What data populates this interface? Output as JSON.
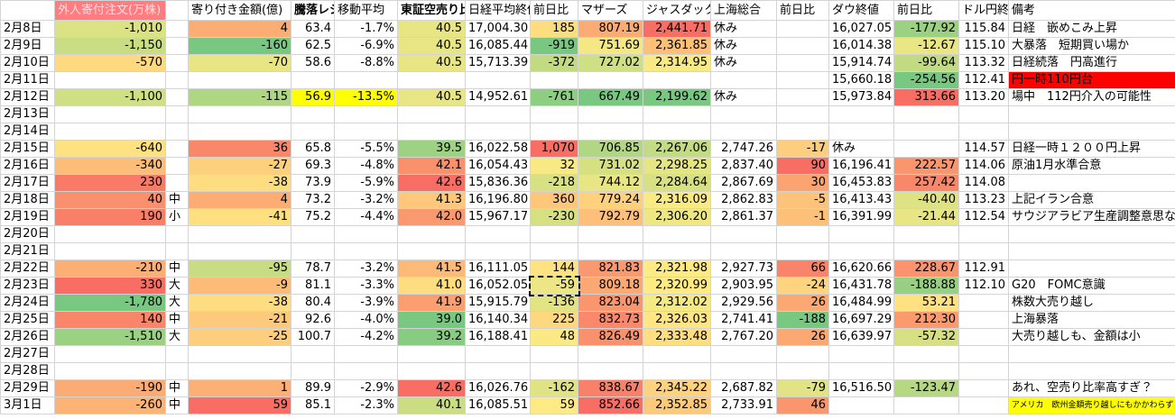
{
  "header": [
    "",
    "外人寄付注文(万株)",
    null,
    "寄り付き金額(億)",
    "騰落レシオ",
    "移動平均",
    "東証空売り比率",
    "日経平均終値",
    "前日比",
    "マザーズ",
    "ジャスダック",
    "上海総合",
    "前日比",
    "ダウ終値",
    "前日比",
    "ドル円終値",
    "備考"
  ],
  "rows": [
    [
      "2月8日",
      "-1,010",
      null,
      "4",
      "63.4",
      "-1.7%",
      "40.5",
      "17,004.30",
      "185",
      "807.19",
      "2,441.71",
      "休み",
      null,
      "16,027.05",
      "-177.92",
      "115.84",
      "日経　嵌めこみ上昇"
    ],
    [
      "2月9日",
      "-1,150",
      null,
      "-160",
      "62.5",
      "-6.9%",
      "40.5",
      "16,085.44",
      "-919",
      "751.69",
      "2,361.85",
      "休み",
      null,
      "16,014.38",
      "-12.67",
      "115.10",
      "大暴落　短期買い場か"
    ],
    [
      "2月10日",
      "-570",
      null,
      "-70",
      "58.6",
      "-8.8%",
      "40.5",
      "15,713.39",
      "-372",
      "727.02",
      "2,314.95",
      "休み",
      null,
      "15,914.74",
      "-99.64",
      "113.32",
      "日経続落　円高進行"
    ],
    [
      "2月11日",
      null,
      null,
      null,
      null,
      null,
      null,
      null,
      null,
      null,
      null,
      null,
      null,
      "15,660.18",
      "-254.56",
      "112.41",
      "円一時110円台"
    ],
    [
      "2月12日",
      "-1,100",
      null,
      "-115",
      "56.9",
      "-13.5%",
      "40.5",
      "14,952.61",
      "-761",
      "667.49",
      "2,199.62",
      "休み",
      null,
      "15,973.84",
      "313.66",
      "113.20",
      "場中　112円介入の可能性"
    ],
    [
      "2月13日",
      null,
      null,
      null,
      null,
      null,
      null,
      null,
      null,
      null,
      null,
      null,
      null,
      null,
      null,
      null,
      null
    ],
    [
      "2月14日",
      null,
      null,
      null,
      null,
      null,
      null,
      null,
      null,
      null,
      null,
      null,
      null,
      null,
      null,
      null,
      null
    ],
    [
      "2月15日",
      "-640",
      null,
      "36",
      "65.8",
      "-5.5%",
      "39.5",
      "16,022.58",
      "1,070",
      "706.85",
      "2,267.06",
      "2,747.26",
      "-17",
      "休み",
      null,
      "114.57",
      "日経一時１２００円上昇"
    ],
    [
      "2月16日",
      "-340",
      null,
      "-27",
      "69.3",
      "-4.8%",
      "42.1",
      "16,054.43",
      "32",
      "731.02",
      "2,298.25",
      "2,837.40",
      "90",
      "16,196.41",
      "222.57",
      "114.06",
      "原油1月水準合意"
    ],
    [
      "2月17日",
      "230",
      null,
      "-38",
      "73.9",
      "-5.9%",
      "42.6",
      "15,836.36",
      "-218",
      "744.12",
      "2,284.64",
      "2,867.69",
      "30",
      "16,453.83",
      "257.42",
      "114.08",
      null
    ],
    [
      "2月18日",
      "40",
      "中",
      "4",
      "73.2",
      "-3.2%",
      "41.3",
      "16,196.80",
      "360",
      "779.24",
      "2,316.09",
      "2,862.83",
      "-5",
      "16,413.43",
      "-40.40",
      "113.23",
      "上記イラン合意"
    ],
    [
      "2月19日",
      "190",
      "小",
      "-41",
      "75.2",
      "-4.4%",
      "42.0",
      "15,967.17",
      "-230",
      "792.79",
      "2,306.20",
      "2,861.37",
      "-1",
      "16,391.99",
      "-21.44",
      "112.54",
      "サウジアラビア生産調整意思なし"
    ],
    [
      "2月20日",
      null,
      null,
      null,
      null,
      null,
      null,
      null,
      null,
      null,
      null,
      null,
      null,
      null,
      null,
      null,
      null
    ],
    [
      "2月21日",
      null,
      null,
      null,
      null,
      null,
      null,
      null,
      null,
      null,
      null,
      null,
      null,
      null,
      null,
      null,
      null
    ],
    [
      "2月22日",
      "-210",
      "中",
      "-95",
      "78.7",
      "-3.2%",
      "41.5",
      "16,111.05",
      "144",
      "821.83",
      "2,321.98",
      "2,927.73",
      "66",
      "16,620.66",
      "228.67",
      "112.91",
      null
    ],
    [
      "2月23日",
      "330",
      "大",
      "-9",
      "81.1",
      "-3.3%",
      "41.0",
      "16,052.05",
      "-59",
      "809.18",
      "2,320.99",
      "2,903.95",
      "-24",
      "16,431.78",
      "-188.88",
      "112.10",
      "G20　FOMC意識"
    ],
    [
      "2月24日",
      "-1,780",
      "大",
      "-38",
      "80.4",
      "-3.9%",
      "41.9",
      "15,915.79",
      "-136",
      "823.04",
      "2,312.02",
      "2,929.56",
      "26",
      "16,484.99",
      "53.21",
      null,
      "株数大売り越し"
    ],
    [
      "2月25日",
      "140",
      "中",
      "-21",
      "92.6",
      "-4.0%",
      "39.0",
      "16,140.34",
      "225",
      "832.73",
      "2,326.03",
      "2,741.41",
      "-188",
      "16,697.29",
      "212.30",
      null,
      "上海暴落"
    ],
    [
      "2月26日",
      "-1,510",
      "大",
      "-25",
      "100.7",
      "-4.2%",
      "39.2",
      "16,188.41",
      "48",
      "826.49",
      "2,333.48",
      "2,767.20",
      "26",
      "16,639.97",
      "-57.32",
      null,
      "大売り越しも、金額は小"
    ],
    [
      "2月27日",
      null,
      null,
      null,
      null,
      null,
      null,
      null,
      null,
      null,
      null,
      null,
      null,
      null,
      null,
      null,
      null
    ],
    [
      "2月28日",
      null,
      null,
      null,
      null,
      null,
      null,
      null,
      null,
      null,
      null,
      null,
      null,
      null,
      null,
      null,
      null
    ],
    [
      "2月29日",
      "-190",
      "中",
      "1",
      "89.9",
      "-2.9%",
      "42.6",
      "16,026.76",
      "-162",
      "838.67",
      "2,345.22",
      "2,687.82",
      "-79",
      "16,516.50",
      "-123.47",
      null,
      "あれ、空売り比率高すぎ？"
    ],
    [
      "3月1日",
      "-260",
      "中",
      "59",
      "85.1",
      "-2.3%",
      "40.1",
      "16,085.51",
      "59",
      "852.66",
      "2,352.85",
      "2,733.91",
      "46",
      null,
      null,
      null,
      "アメリカ　欧州金額売り越しにもかかわらず"
    ]
  ]
}
